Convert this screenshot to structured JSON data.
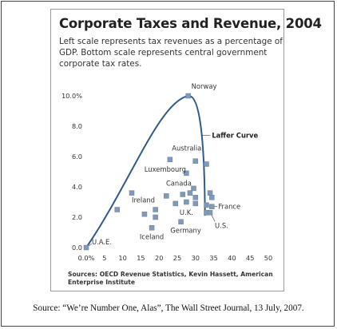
{
  "chart_data": {
    "type": "scatter",
    "title": "Corporate Taxes and Revenue, 2004",
    "subtitle": "Left scale represents tax revenues as a percentage of GDP. Bottom scale represents central government corporate tax rates.",
    "xlim": [
      0,
      50
    ],
    "ylim": [
      0,
      10
    ],
    "x_ticks": [
      {
        "value": 0,
        "label": "0.0%"
      },
      {
        "value": 5,
        "label": "5"
      },
      {
        "value": 10,
        "label": "10"
      },
      {
        "value": 15,
        "label": "15"
      },
      {
        "value": 20,
        "label": "20"
      },
      {
        "value": 25,
        "label": "25"
      },
      {
        "value": 30,
        "label": "30"
      },
      {
        "value": 35,
        "label": "35"
      },
      {
        "value": 40,
        "label": "40"
      },
      {
        "value": 45,
        "label": "45"
      },
      {
        "value": 50,
        "label": "50"
      }
    ],
    "y_ticks": [
      {
        "value": 0,
        "label": "0.0"
      },
      {
        "value": 2,
        "label": "2.0"
      },
      {
        "value": 4,
        "label": "4.0"
      },
      {
        "value": 6,
        "label": "6.0"
      },
      {
        "value": 8,
        "label": "8.0"
      },
      {
        "value": 10,
        "label": "10.0%"
      }
    ],
    "grid": false,
    "marker_color": "#7f99b6",
    "curve_color": "#2e5b8c",
    "points": [
      {
        "x": 0,
        "y": 0,
        "label": "U.A.E."
      },
      {
        "x": 8.5,
        "y": 2.5,
        "label": ""
      },
      {
        "x": 12.5,
        "y": 3.6,
        "label": "Ireland"
      },
      {
        "x": 16,
        "y": 2.2,
        "label": ""
      },
      {
        "x": 18,
        "y": 1.3,
        "label": "Iceland"
      },
      {
        "x": 19,
        "y": 2.5,
        "label": ""
      },
      {
        "x": 19,
        "y": 2.0,
        "label": ""
      },
      {
        "x": 23,
        "y": 5.8,
        "label": "Luxembourg"
      },
      {
        "x": 22,
        "y": 3.4,
        "label": ""
      },
      {
        "x": 24.5,
        "y": 2.9,
        "label": ""
      },
      {
        "x": 26,
        "y": 1.7,
        "label": "Germany"
      },
      {
        "x": 26.5,
        "y": 3.5,
        "label": ""
      },
      {
        "x": 27.5,
        "y": 4.9,
        "label": ""
      },
      {
        "x": 27.5,
        "y": 3.0,
        "label": "U.K."
      },
      {
        "x": 28,
        "y": 10.0,
        "label": "Norway"
      },
      {
        "x": 28.5,
        "y": 3.6,
        "label": "Canada"
      },
      {
        "x": 29.5,
        "y": 3.9,
        "label": ""
      },
      {
        "x": 30,
        "y": 5.7,
        "label": "Australia"
      },
      {
        "x": 30,
        "y": 3.3,
        "label": ""
      },
      {
        "x": 30,
        "y": 2.9,
        "label": ""
      },
      {
        "x": 33,
        "y": 5.5,
        "label": ""
      },
      {
        "x": 33,
        "y": 2.8,
        "label": ""
      },
      {
        "x": 33,
        "y": 2.3,
        "label": ""
      },
      {
        "x": 34,
        "y": 3.6,
        "label": ""
      },
      {
        "x": 34.5,
        "y": 3.3,
        "label": ""
      },
      {
        "x": 34.5,
        "y": 2.7,
        "label": "France"
      },
      {
        "x": 34,
        "y": 2.3,
        "label": "U.S."
      }
    ],
    "annotations": [
      {
        "text": "Laffer Curve",
        "x": 34.5,
        "y": 7.4,
        "bold": true
      }
    ],
    "sources": "Sources: OECD Revenue Statistics, Kevin Hassett, American Enterprise Institute"
  },
  "caption": "Source: “We’re Number One, Alas”, The Wall Street Journal, 13 July, 2007."
}
